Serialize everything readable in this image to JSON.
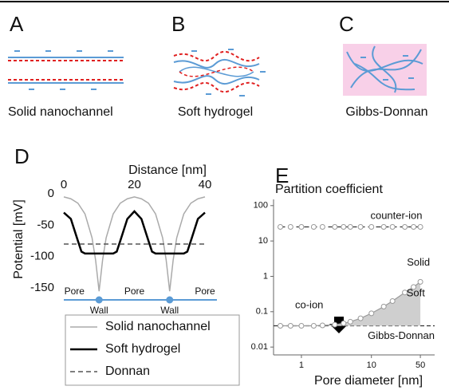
{
  "panels": [
    {
      "letter": "A",
      "caption": "Solid nanochannel"
    },
    {
      "letter": "B",
      "caption": "Soft hydrogel"
    },
    {
      "letter": "C",
      "caption": "Gibbs-Donnan"
    }
  ],
  "chart_data": [
    {
      "panel": "D",
      "type": "line",
      "xlabel": "Distance [nm]",
      "ylabel": "Potential [mV]",
      "xlim": [
        0,
        40
      ],
      "xticks": [
        0,
        20,
        40
      ],
      "ylim": [
        -165,
        5
      ],
      "yticks": [
        0,
        -50,
        -100,
        -150
      ],
      "series": [
        {
          "name": "Solid nanochannel",
          "color": "#aaaaaa",
          "style": "solid",
          "x": [
            0,
            2,
            4,
            6,
            8,
            9,
            10,
            11,
            12,
            14,
            16,
            18,
            20,
            22,
            24,
            26,
            28,
            29,
            30,
            31,
            32,
            34,
            36,
            38,
            40
          ],
          "values": [
            -5,
            -8,
            -15,
            -32,
            -70,
            -105,
            -155,
            -105,
            -70,
            -32,
            -15,
            -8,
            -5,
            -8,
            -15,
            -32,
            -70,
            -105,
            -155,
            -105,
            -70,
            -32,
            -15,
            -8,
            -5
          ]
        },
        {
          "name": "Soft hydrogel",
          "color": "#000000",
          "style": "bold",
          "x": [
            0,
            2,
            4,
            5,
            6,
            10,
            14,
            15,
            16,
            18,
            20,
            22,
            24,
            25,
            26,
            30,
            34,
            35,
            36,
            38,
            40
          ],
          "values": [
            -30,
            -40,
            -75,
            -92,
            -95,
            -95,
            -95,
            -92,
            -75,
            -40,
            -28,
            -40,
            -75,
            -92,
            -95,
            -95,
            -95,
            -92,
            -75,
            -40,
            -30
          ]
        },
        {
          "name": "Donnan",
          "color": "#555555",
          "style": "dashed",
          "x": [
            0,
            40
          ],
          "values": [
            -80,
            -80
          ]
        }
      ],
      "annotations": [
        {
          "text": "Pore",
          "x": 3
        },
        {
          "text": "Pore",
          "x": 20
        },
        {
          "text": "Pore",
          "x": 40
        },
        {
          "text": "Wall",
          "x": 10
        },
        {
          "text": "Wall",
          "x": 30
        }
      ]
    },
    {
      "panel": "E",
      "type": "line",
      "title": "Partition coefficient",
      "xlabel": "Pore diameter [nm]",
      "xscale": "log",
      "yscale": "log",
      "xlim": [
        0.4,
        80
      ],
      "xticks": [
        1,
        10,
        50
      ],
      "ylim": [
        0.006,
        150
      ],
      "yticks": [
        100,
        10,
        1,
        0.1,
        0.01
      ],
      "x": [
        0.5,
        0.7,
        1,
        1.5,
        2,
        3,
        4,
        5,
        7,
        10,
        15,
        20,
        30,
        40,
        50
      ],
      "series": [
        {
          "name": "counter-ion",
          "color": "#999999",
          "style": "dashed",
          "values": [
            25,
            25,
            25,
            25,
            25,
            25,
            25,
            25,
            25,
            25,
            25,
            25,
            25,
            25,
            25
          ]
        },
        {
          "name": "co-ion",
          "color": "#999999",
          "style": "solid",
          "values": [
            0.04,
            0.04,
            0.04,
            0.04,
            0.041,
            0.043,
            0.047,
            0.052,
            0.065,
            0.09,
            0.14,
            0.2,
            0.35,
            0.5,
            0.7
          ]
        }
      ],
      "reference_lines": [
        {
          "label": "Gibbs-Donnan",
          "value": 0.04,
          "color": "#333333"
        }
      ],
      "annotations": [
        {
          "text": "Solid",
          "x": 47,
          "y": 2.4
        },
        {
          "text": "Soft",
          "x": 43,
          "y": 0.33
        }
      ]
    }
  ]
}
